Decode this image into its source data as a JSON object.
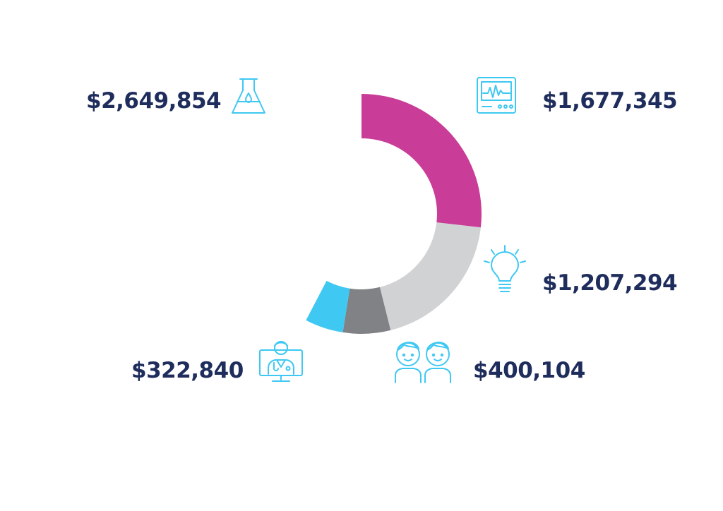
{
  "chart_data": {
    "type": "pie",
    "style": "donut",
    "segments": [
      {
        "label": "$2,649,854",
        "value": 2649854,
        "color": "#ffffff",
        "icon": "flask-icon"
      },
      {
        "label": "$1,677,345",
        "value": 1677345,
        "color": "#c93c97",
        "icon": "monitor-icon"
      },
      {
        "label": "$1,207,294",
        "value": 1207294,
        "color": "#d1d2d4",
        "icon": "lightbulb-icon"
      },
      {
        "label": "$400,104",
        "value": 400104,
        "color": "#808285",
        "icon": "children-icon"
      },
      {
        "label": "$322,840",
        "value": 322840,
        "color": "#3fc8f2",
        "icon": "doctor-screen-icon"
      }
    ]
  },
  "colors": {
    "label_text": "#1f2d5c",
    "icon_stroke": "#3fc8f2"
  }
}
